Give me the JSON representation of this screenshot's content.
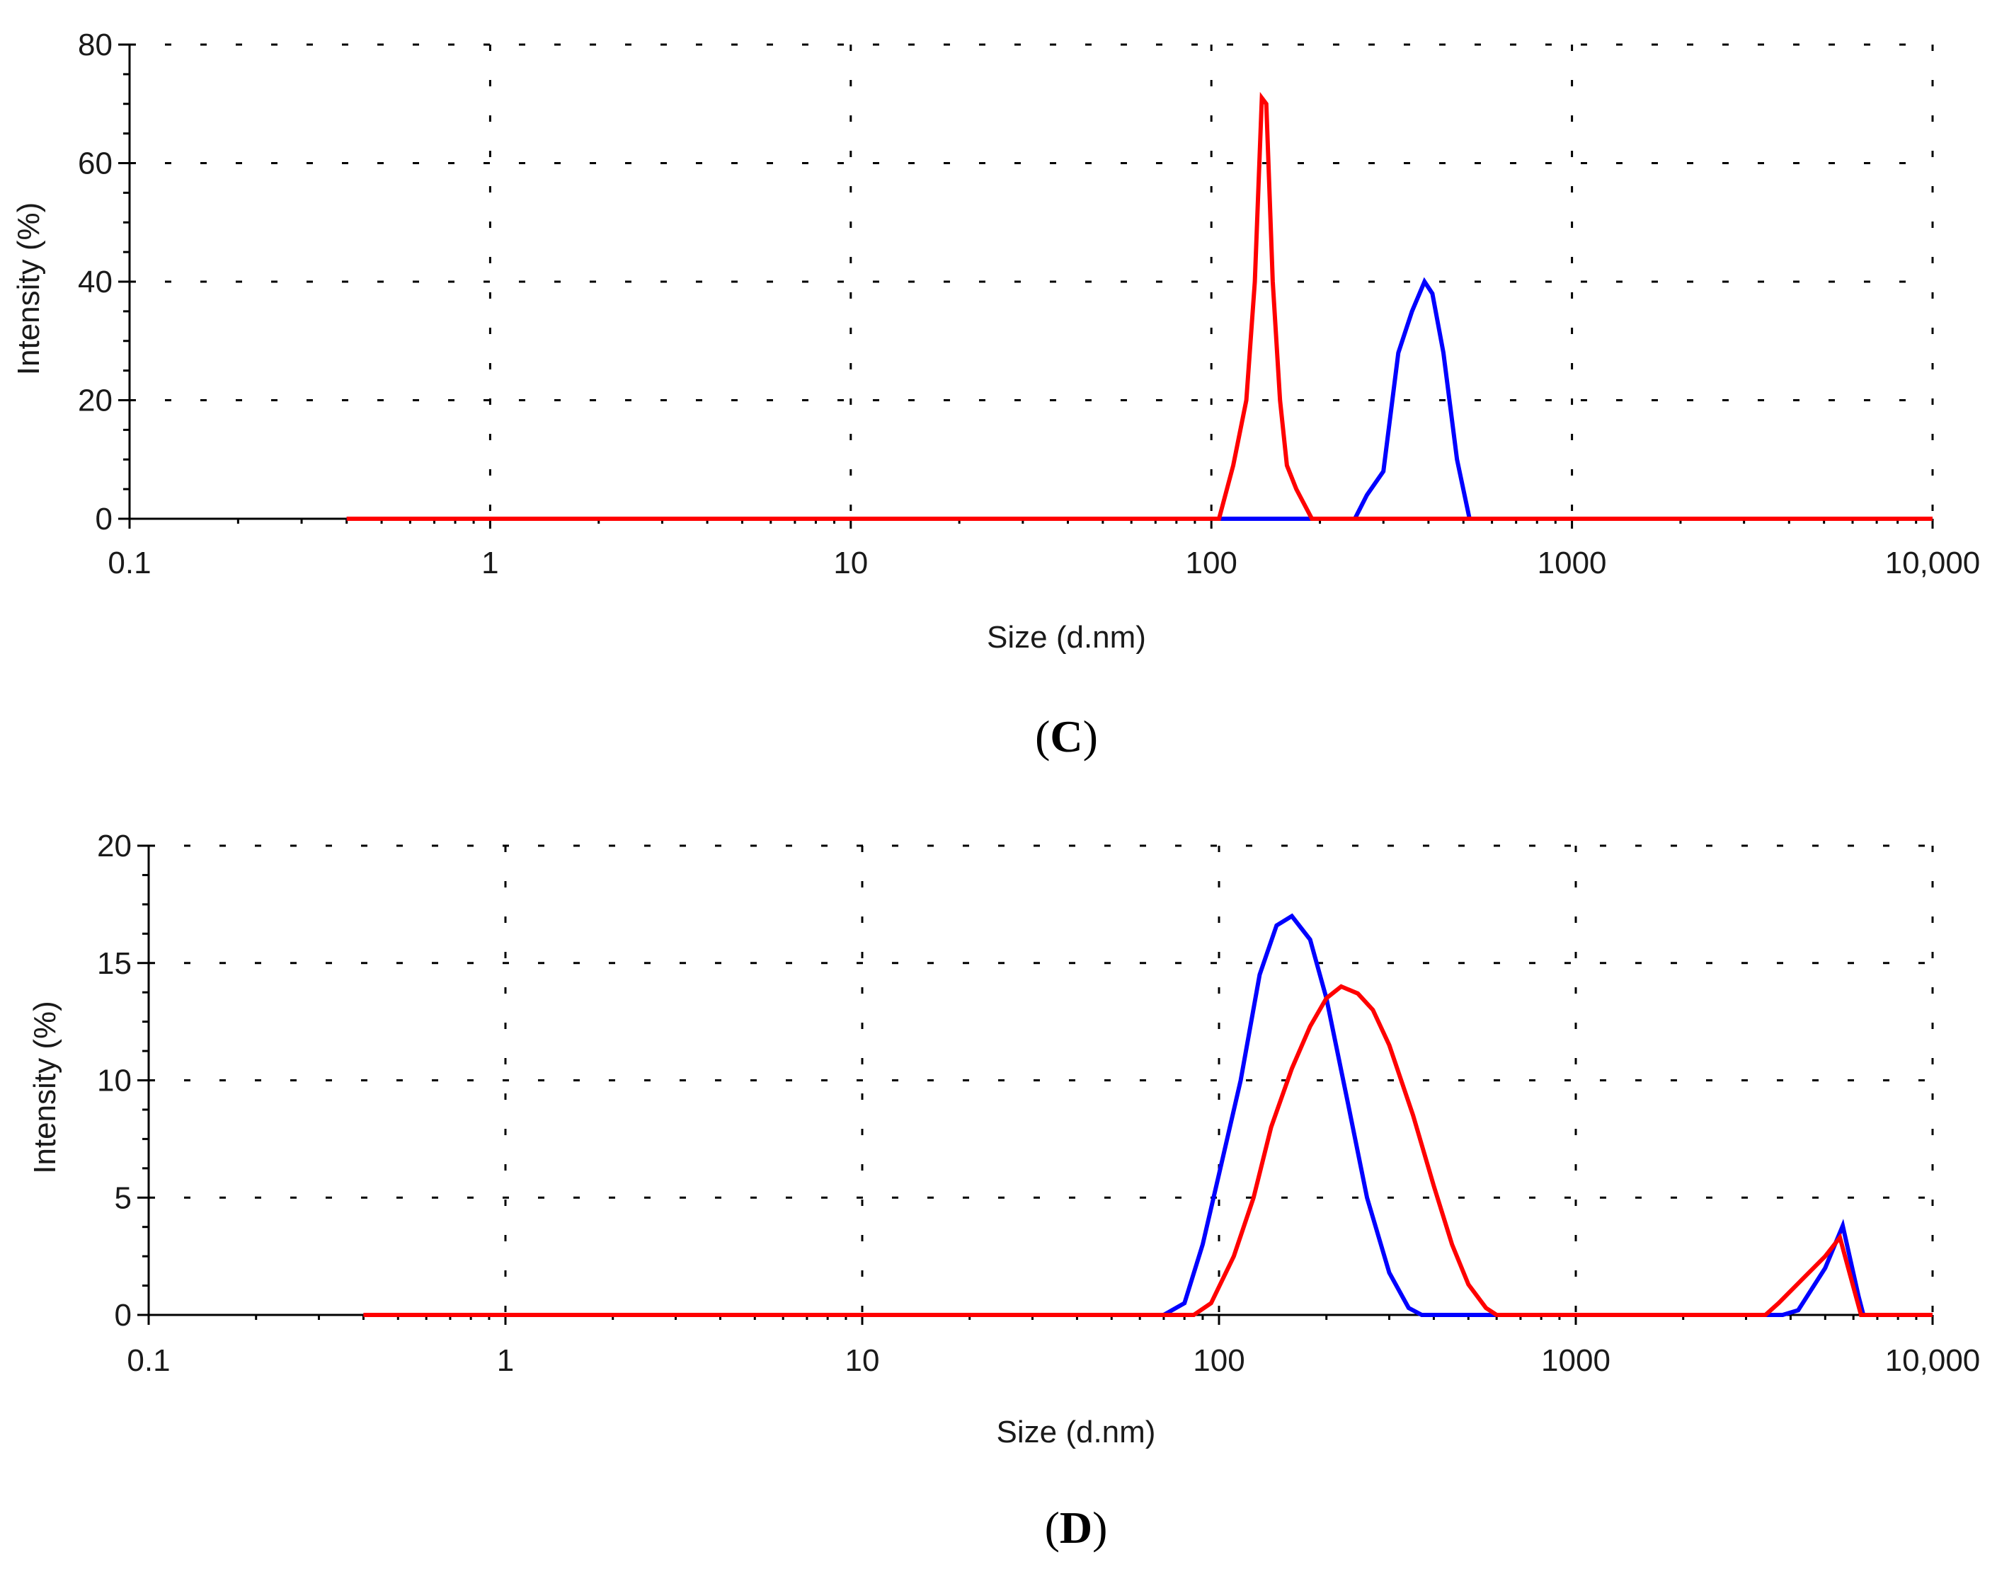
{
  "chart_data": [
    {
      "type": "line",
      "panel_label": "C",
      "xlabel": "Size (d.nm)",
      "ylabel": "Intensity (%)",
      "xscale": "log",
      "xlim": [
        0.1,
        10000
      ],
      "ylim": [
        0,
        80
      ],
      "x_ticks": [
        0.1,
        1,
        10,
        100,
        1000,
        10000
      ],
      "x_tick_labels": [
        "0.1",
        "1",
        "10",
        "100",
        "1000",
        "10,000"
      ],
      "y_ticks": [
        0,
        20,
        40,
        60,
        80
      ],
      "y_tick_labels": [
        "0",
        "20",
        "40",
        "60",
        "80"
      ],
      "grid": true,
      "series": [
        {
          "name": "blue",
          "color": "#0000ff",
          "x": [
            0.4,
            100,
            180,
            250,
            270,
            300,
            330,
            360,
            390,
            410,
            440,
            480,
            520,
            530,
            10000
          ],
          "y": [
            0,
            0,
            0,
            0,
            4,
            8,
            28,
            35,
            40,
            38,
            28,
            10,
            0,
            0,
            0
          ]
        },
        {
          "name": "red",
          "color": "#ff0000",
          "x": [
            0.4,
            105,
            115,
            125,
            132,
            138,
            142,
            148,
            155,
            162,
            172,
            190,
            10000
          ],
          "y": [
            0,
            0,
            9,
            20,
            40,
            71,
            70,
            40,
            20,
            9,
            5,
            0,
            0
          ]
        }
      ]
    },
    {
      "type": "line",
      "panel_label": "D",
      "xlabel": "Size (d.nm)",
      "ylabel": "Intensity (%)",
      "xscale": "log",
      "xlim": [
        0.1,
        10000
      ],
      "ylim": [
        0,
        20
      ],
      "x_ticks": [
        0.1,
        1,
        10,
        100,
        1000,
        10000
      ],
      "x_tick_labels": [
        "0.1",
        "1",
        "10",
        "100",
        "1000",
        "10,000"
      ],
      "y_ticks": [
        0,
        5,
        10,
        15,
        20
      ],
      "y_tick_labels": [
        "0",
        "5",
        "10",
        "15",
        "20"
      ],
      "grid": true,
      "series": [
        {
          "name": "blue",
          "color": "#0000ff",
          "x": [
            0.4,
            70,
            80,
            90,
            100,
            115,
            130,
            145,
            160,
            180,
            200,
            230,
            260,
            300,
            340,
            370,
            3800,
            4200,
            5000,
            5600,
            6200,
            6400,
            10000
          ],
          "y": [
            0,
            0,
            0.5,
            3,
            6,
            10,
            14.5,
            16.6,
            17,
            16,
            13.5,
            9,
            5,
            1.8,
            0.3,
            0,
            0,
            0.2,
            2,
            3.8,
            0.8,
            0,
            0
          ]
        },
        {
          "name": "red",
          "color": "#ff0000",
          "x": [
            0.4,
            85,
            95,
            110,
            125,
            140,
            160,
            180,
            200,
            220,
            245,
            270,
            300,
            350,
            400,
            450,
            500,
            560,
            600,
            3400,
            3700,
            4300,
            5000,
            5500,
            5800,
            6300,
            10000
          ],
          "y": [
            0,
            0,
            0.5,
            2.5,
            5,
            8,
            10.5,
            12.3,
            13.5,
            14,
            13.7,
            13,
            11.5,
            8.5,
            5.5,
            3,
            1.3,
            0.3,
            0,
            0,
            0.5,
            1.5,
            2.5,
            3.3,
            2,
            0,
            0
          ]
        }
      ]
    }
  ]
}
